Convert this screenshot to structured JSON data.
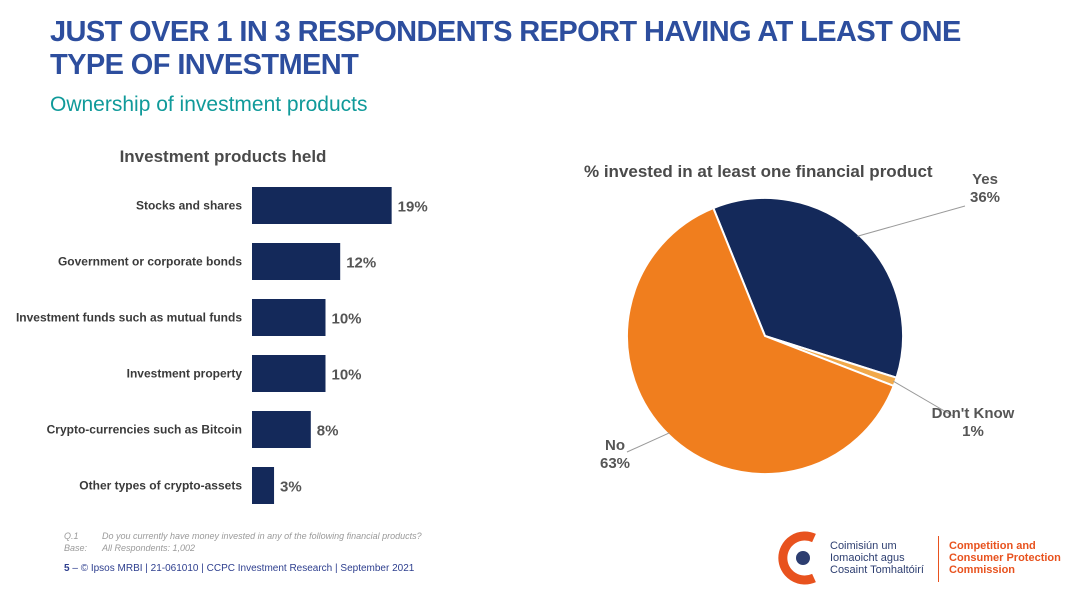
{
  "header": {
    "title_line1": "JUST OVER 1 IN 3 RESPONDENTS REPORT HAVING AT LEAST ONE",
    "title_line2": "TYPE OF INVESTMENT",
    "subtitle": "Ownership of investment products"
  },
  "chart_data": [
    {
      "type": "bar",
      "orientation": "horizontal",
      "title": "Investment products held",
      "categories": [
        "Stocks and shares",
        "Government or corporate bonds",
        "Investment funds such as mutual funds",
        "Investment property",
        "Crypto-currencies such as Bitcoin",
        "Other types of crypto-assets"
      ],
      "values": [
        19,
        12,
        10,
        10,
        8,
        3
      ],
      "value_labels": [
        "19%",
        "12%",
        "10%",
        "10%",
        "8%",
        "3%"
      ],
      "unit": "%",
      "xlim": [
        0,
        100
      ],
      "grid": false,
      "color": "#14295a"
    },
    {
      "type": "pie",
      "title": "% invested in at least one financial product",
      "slices": [
        {
          "name": "Yes",
          "value": 36,
          "label": "36%",
          "color": "#14295a"
        },
        {
          "name": "Don't Know",
          "value": 1,
          "label": "1%",
          "color": "#f1a94a"
        },
        {
          "name": "No",
          "value": 63,
          "label": "63%",
          "color": "#f07e1e"
        }
      ]
    }
  ],
  "footnote": {
    "q_key": "Q.1",
    "q_text": "Do you currently have money invested in any of the following financial products?",
    "base_key": "Base:",
    "base_text": "All Respondents: 1,002"
  },
  "footer": {
    "page_number": "5",
    "separator": "–",
    "text": "© Ipsos MRBI | 21-061010 | CCPC Investment Research | September 2021"
  },
  "logo": {
    "irish_line1": "Coimisiún um",
    "irish_line2": "Iomaoicht agus",
    "irish_line3": "Cosaint Tomhaltóirí",
    "english_line1": "Competition and",
    "english_line2": "Consumer Protection",
    "english_line3": "Commission",
    "colors": {
      "navy": "#2d3e70",
      "orange": "#e8521e"
    }
  }
}
